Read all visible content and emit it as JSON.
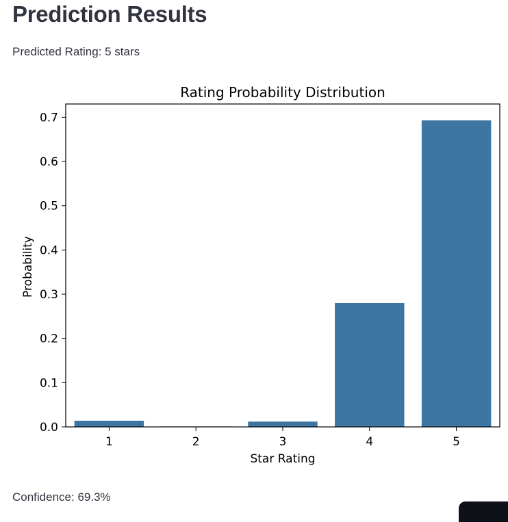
{
  "header": {
    "title": "Prediction Results"
  },
  "prediction": {
    "text": "Predicted Rating: 5 stars"
  },
  "confidence": {
    "text": "Confidence: 69.3%"
  },
  "chart_data": {
    "type": "bar",
    "title": "Rating Probability Distribution",
    "xlabel": "Star Rating",
    "ylabel": "Probability",
    "categories": [
      "1",
      "2",
      "3",
      "4",
      "5"
    ],
    "values": [
      0.014,
      0.001,
      0.012,
      0.28,
      0.693
    ],
    "ylim": [
      0,
      0.73
    ],
    "yticks": [
      "0.0",
      "0.1",
      "0.2",
      "0.3",
      "0.4",
      "0.5",
      "0.6",
      "0.7"
    ],
    "bar_color": "#3d76a3",
    "grid": false
  },
  "colors": {
    "text": "#31333f",
    "bar": "#3d76a3",
    "corner_widget": "#0e1117"
  }
}
